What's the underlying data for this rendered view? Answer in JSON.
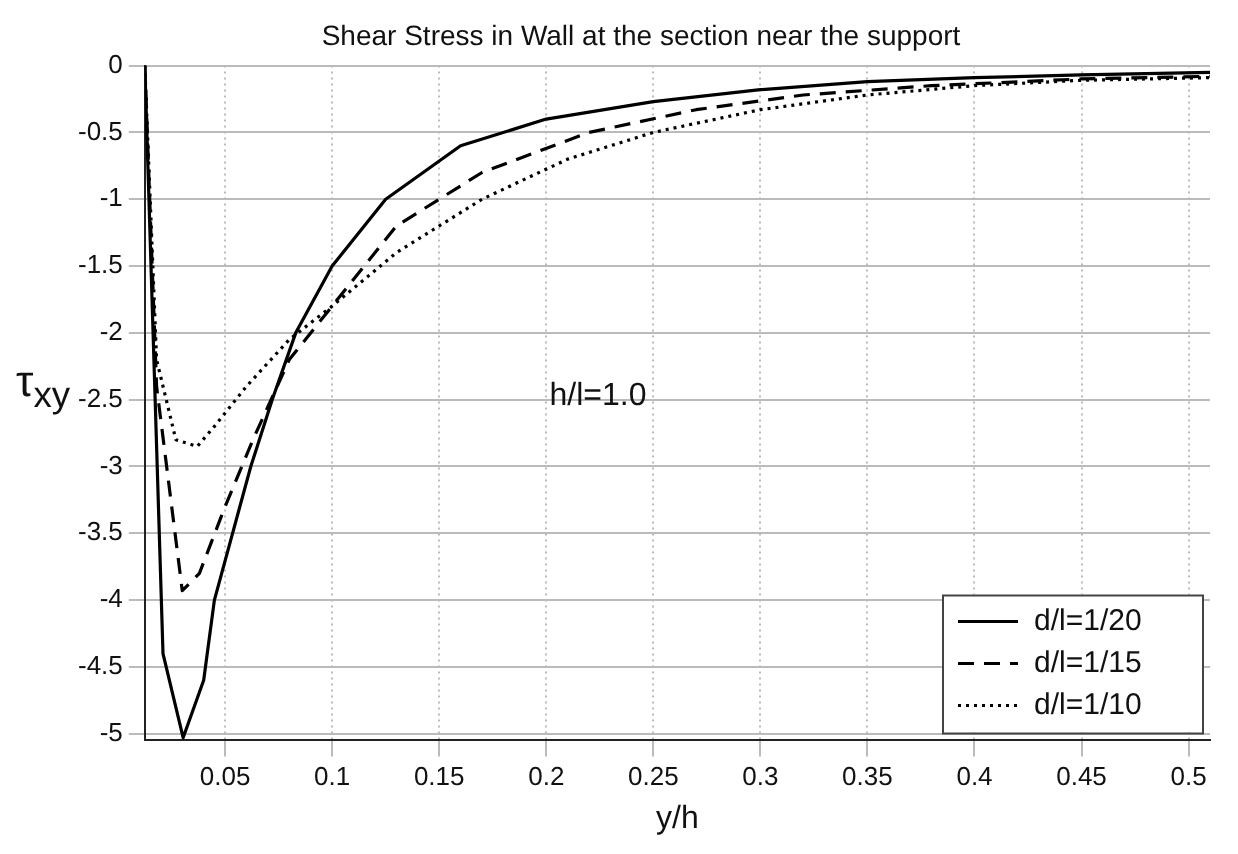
{
  "chart_data": {
    "type": "line",
    "title": "Shear Stress in Wall at the section near the support",
    "xlabel": "y/h",
    "ylabel": "τ$_{xy}$",
    "annotations": [
      "h/l=1.0"
    ],
    "xlim": [
      0.0125,
      0.51
    ],
    "xticks": [
      0.05,
      0.1,
      0.15,
      0.2,
      0.25,
      0.3,
      0.35,
      0.4,
      0.45,
      0.5
    ],
    "ylim": [
      -5.05,
      0
    ],
    "yticks": [
      -5,
      -4.5,
      -4,
      -3.5,
      -3,
      -2.5,
      -2,
      -1.5,
      -1,
      -0.5,
      0
    ],
    "grid": true,
    "legend": "bottom right",
    "marker": "none",
    "series": [
      {
        "name": "d/l=1/20",
        "color": "#000000",
        "line_style": "solid",
        "x": [
          0.0125,
          0.021,
          0.0304,
          0.04,
          0.045,
          0.062,
          0.072,
          0.083,
          0.1,
          0.125,
          0.16,
          0.2,
          0.25,
          0.3,
          0.35,
          0.4,
          0.45,
          0.51
        ],
        "values": [
          0,
          -4.4,
          -5.03,
          -4.6,
          -4.0,
          -3.0,
          -2.5,
          -2.0,
          -1.5,
          -1.0,
          -0.6,
          -0.4,
          -0.27,
          -0.18,
          -0.12,
          -0.09,
          -0.07,
          -0.05
        ]
      },
      {
        "name": "d/l=1/15",
        "color": "#000000",
        "line_style": "dashed",
        "x": [
          0.0125,
          0.018,
          0.03,
          0.038,
          0.05,
          0.063,
          0.08,
          0.1,
          0.13,
          0.17,
          0.22,
          0.27,
          0.32,
          0.38,
          0.45,
          0.51
        ],
        "values": [
          0,
          -2.4,
          -3.93,
          -3.8,
          -3.3,
          -2.8,
          -2.2,
          -1.8,
          -1.2,
          -0.8,
          -0.5,
          -0.33,
          -0.22,
          -0.15,
          -0.1,
          -0.08
        ]
      },
      {
        "name": "d/l=1/10",
        "color": "#000000",
        "line_style": "dotted",
        "x": [
          0.0125,
          0.018,
          0.027,
          0.037,
          0.045,
          0.06,
          0.08,
          0.1,
          0.13,
          0.17,
          0.21,
          0.25,
          0.3,
          0.35,
          0.4,
          0.45,
          0.51
        ],
        "values": [
          0,
          -2.2,
          -2.8,
          -2.85,
          -2.7,
          -2.4,
          -2.05,
          -1.8,
          -1.4,
          -1.0,
          -0.7,
          -0.5,
          -0.33,
          -0.22,
          -0.15,
          -0.11,
          -0.09
        ]
      }
    ]
  }
}
